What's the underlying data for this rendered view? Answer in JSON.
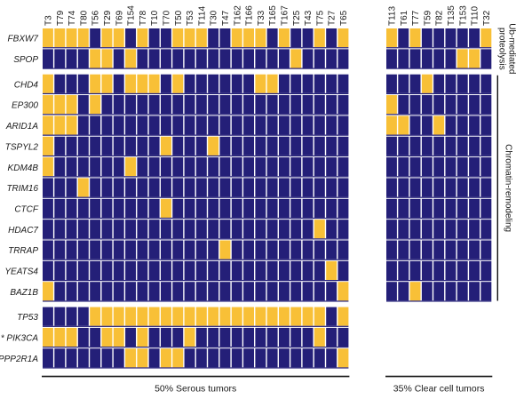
{
  "chart_data": {
    "type": "heatmap",
    "title": "",
    "colors": {
      "mutated": "#f8c037",
      "wildtype": "#241f78"
    },
    "groups": [
      {
        "name": "50% Serous tumors",
        "samples": [
          "T3",
          "T79",
          "T74",
          "T80",
          "T56",
          "T29",
          "T69",
          "T154",
          "T78",
          "T10",
          "T70",
          "T50",
          "T53",
          "T114",
          "T30",
          "T47",
          "T162",
          "T166",
          "T33",
          "T165",
          "T167",
          "T25",
          "T43",
          "T75",
          "T27",
          "T65"
        ]
      },
      {
        "name": "35% Clear cell tumors",
        "samples": [
          "T113",
          "T61",
          "T77",
          "T59",
          "T82",
          "T135",
          "T153",
          "T110",
          "T32"
        ]
      }
    ],
    "categories": [
      {
        "name": "Ub-mediated proteolysis",
        "genes": [
          "FBXW7",
          "SPOP"
        ]
      },
      {
        "name": "Chromatin-remodeling",
        "genes": [
          "CHD4",
          "EP300",
          "ARID1A",
          "TSPYL2",
          "KDM4B",
          "TRIM16",
          "CTCF",
          "HDAC7",
          "TRRAP",
          "YEATS4",
          "BAZ1B"
        ]
      },
      {
        "name": "",
        "genes": [
          "TP53",
          "PIK3CA",
          "PPP2R1A"
        ]
      }
    ],
    "gene_labels": {
      "FBXW7": "FBXW7",
      "SPOP": "SPOP",
      "CHD4": "CHD4",
      "EP300": "EP300",
      "ARID1A": "ARID1A",
      "TSPYL2": "TSPYL2",
      "KDM4B": "KDM4B",
      "TRIM16": "TRIM16",
      "CTCF": "CTCF",
      "HDAC7": "HDAC7",
      "TRRAP": "TRRAP",
      "YEATS4": "YEATS4",
      "BAZ1B": "BAZ1B",
      "TP53": "TP53",
      "PIK3CA": "* PIK3CA",
      "PPP2R1A": "PPP2R1A"
    },
    "serous_only_genes": [
      "TP53",
      "PIK3CA",
      "PPP2R1A"
    ],
    "mutations": {
      "FBXW7": {
        "serous": [
          1,
          1,
          1,
          1,
          0,
          1,
          1,
          0,
          1,
          0,
          0,
          1,
          1,
          1,
          0,
          0,
          1,
          1,
          1,
          0,
          1,
          0,
          0,
          1,
          0,
          1
        ],
        "clear": [
          1,
          0,
          1,
          0,
          0,
          0,
          0,
          0,
          1
        ]
      },
      "SPOP": {
        "serous": [
          0,
          0,
          0,
          0,
          1,
          1,
          0,
          1,
          0,
          0,
          0,
          0,
          0,
          0,
          0,
          0,
          0,
          0,
          0,
          0,
          0,
          1,
          0,
          0,
          0,
          0
        ],
        "clear": [
          0,
          0,
          0,
          0,
          0,
          0,
          1,
          1,
          0
        ]
      },
      "CHD4": {
        "serous": [
          1,
          0,
          0,
          0,
          1,
          1,
          0,
          1,
          1,
          1,
          0,
          1,
          0,
          0,
          0,
          0,
          0,
          0,
          1,
          1,
          0,
          0,
          0,
          0,
          0,
          0
        ],
        "clear": [
          0,
          0,
          0,
          1,
          0,
          0,
          0,
          0,
          0
        ]
      },
      "EP300": {
        "serous": [
          1,
          1,
          1,
          0,
          1,
          0,
          0,
          0,
          0,
          0,
          0,
          0,
          0,
          0,
          0,
          0,
          0,
          0,
          0,
          0,
          0,
          0,
          0,
          0,
          0,
          0
        ],
        "clear": [
          1,
          0,
          0,
          0,
          0,
          0,
          0,
          0,
          0
        ]
      },
      "ARID1A": {
        "serous": [
          1,
          1,
          1,
          0,
          0,
          0,
          0,
          0,
          0,
          0,
          0,
          0,
          0,
          0,
          0,
          0,
          0,
          0,
          0,
          0,
          0,
          0,
          0,
          0,
          0,
          0
        ],
        "clear": [
          1,
          1,
          0,
          0,
          1,
          0,
          0,
          0,
          0
        ]
      },
      "TSPYL2": {
        "serous": [
          1,
          0,
          0,
          0,
          0,
          0,
          0,
          0,
          0,
          0,
          1,
          0,
          0,
          0,
          1,
          0,
          0,
          0,
          0,
          0,
          0,
          0,
          0,
          0,
          0,
          0
        ],
        "clear": [
          0,
          0,
          0,
          0,
          0,
          0,
          0,
          0,
          0
        ]
      },
      "KDM4B": {
        "serous": [
          1,
          0,
          0,
          0,
          0,
          0,
          0,
          1,
          0,
          0,
          0,
          0,
          0,
          0,
          0,
          0,
          0,
          0,
          0,
          0,
          0,
          0,
          0,
          0,
          0,
          0
        ],
        "clear": [
          0,
          0,
          0,
          0,
          0,
          0,
          0,
          0,
          0
        ]
      },
      "TRIM16": {
        "serous": [
          0,
          0,
          0,
          1,
          0,
          0,
          0,
          0,
          0,
          0,
          0,
          0,
          0,
          0,
          0,
          0,
          0,
          0,
          0,
          0,
          0,
          0,
          0,
          0,
          0,
          0
        ],
        "clear": [
          0,
          0,
          0,
          0,
          0,
          0,
          0,
          0,
          0
        ]
      },
      "CTCF": {
        "serous": [
          0,
          0,
          0,
          0,
          0,
          0,
          0,
          0,
          0,
          0,
          1,
          0,
          0,
          0,
          0,
          0,
          0,
          0,
          0,
          0,
          0,
          0,
          0,
          0,
          0,
          0
        ],
        "clear": [
          0,
          0,
          0,
          0,
          0,
          0,
          0,
          0,
          0
        ]
      },
      "HDAC7": {
        "serous": [
          0,
          0,
          0,
          0,
          0,
          0,
          0,
          0,
          0,
          0,
          0,
          0,
          0,
          0,
          0,
          0,
          0,
          0,
          0,
          0,
          0,
          0,
          0,
          1,
          0,
          0
        ],
        "clear": [
          0,
          0,
          0,
          0,
          0,
          0,
          0,
          0,
          0
        ]
      },
      "TRRAP": {
        "serous": [
          0,
          0,
          0,
          0,
          0,
          0,
          0,
          0,
          0,
          0,
          0,
          0,
          0,
          0,
          0,
          1,
          0,
          0,
          0,
          0,
          0,
          0,
          0,
          0,
          0,
          0
        ],
        "clear": [
          0,
          0,
          0,
          0,
          0,
          0,
          0,
          0,
          0
        ]
      },
      "YEATS4": {
        "serous": [
          0,
          0,
          0,
          0,
          0,
          0,
          0,
          0,
          0,
          0,
          0,
          0,
          0,
          0,
          0,
          0,
          0,
          0,
          0,
          0,
          0,
          0,
          0,
          0,
          1,
          0
        ],
        "clear": [
          0,
          0,
          0,
          0,
          0,
          0,
          0,
          0,
          0
        ]
      },
      "BAZ1B": {
        "serous": [
          1,
          0,
          0,
          0,
          0,
          0,
          0,
          0,
          0,
          0,
          0,
          0,
          0,
          0,
          0,
          0,
          0,
          0,
          0,
          0,
          0,
          0,
          0,
          0,
          0,
          1
        ],
        "clear": [
          0,
          0,
          1,
          0,
          0,
          0,
          0,
          0,
          0
        ]
      },
      "TP53": {
        "serous": [
          0,
          0,
          0,
          0,
          1,
          1,
          1,
          1,
          1,
          1,
          1,
          1,
          1,
          1,
          1,
          1,
          1,
          1,
          1,
          1,
          1,
          1,
          1,
          1,
          0,
          1
        ],
        "clear": []
      },
      "PIK3CA": {
        "serous": [
          1,
          1,
          1,
          0,
          0,
          1,
          1,
          0,
          1,
          0,
          0,
          0,
          1,
          0,
          0,
          0,
          0,
          0,
          0,
          0,
          0,
          0,
          0,
          1,
          0,
          0
        ],
        "clear": []
      },
      "PPP2R1A": {
        "serous": [
          0,
          0,
          0,
          0,
          0,
          0,
          0,
          1,
          1,
          0,
          1,
          1,
          0,
          0,
          0,
          0,
          0,
          0,
          0,
          0,
          0,
          0,
          0,
          0,
          0,
          1
        ],
        "clear": []
      }
    }
  }
}
